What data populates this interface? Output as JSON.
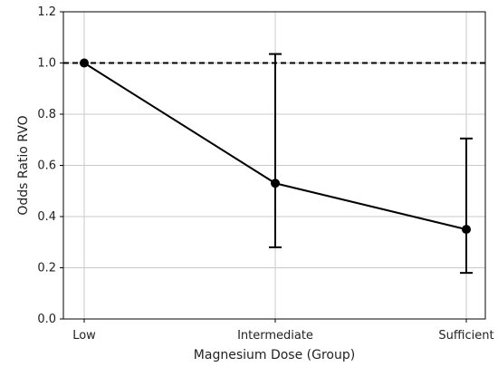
{
  "chart_data": {
    "type": "line",
    "title": "",
    "xlabel": "Magnesium Dose (Group)",
    "ylabel": "Odds Ratio RVO",
    "categories": [
      "Low",
      "Intermediate",
      "Sufficient"
    ],
    "series": [
      {
        "values": [
          1.0,
          0.53,
          0.35
        ],
        "error_lower": [
          1.0,
          0.28,
          0.18
        ],
        "error_upper": [
          1.0,
          1.035,
          0.705
        ],
        "color": "#000000"
      }
    ],
    "reference_line": {
      "y": 1.0,
      "style": "dashed",
      "color": "#000000"
    },
    "ylim": [
      0.0,
      1.2
    ],
    "yticks": [
      "0.0",
      "0.2",
      "0.4",
      "0.6",
      "0.8",
      "1.0",
      "1.2"
    ],
    "grid": true
  }
}
